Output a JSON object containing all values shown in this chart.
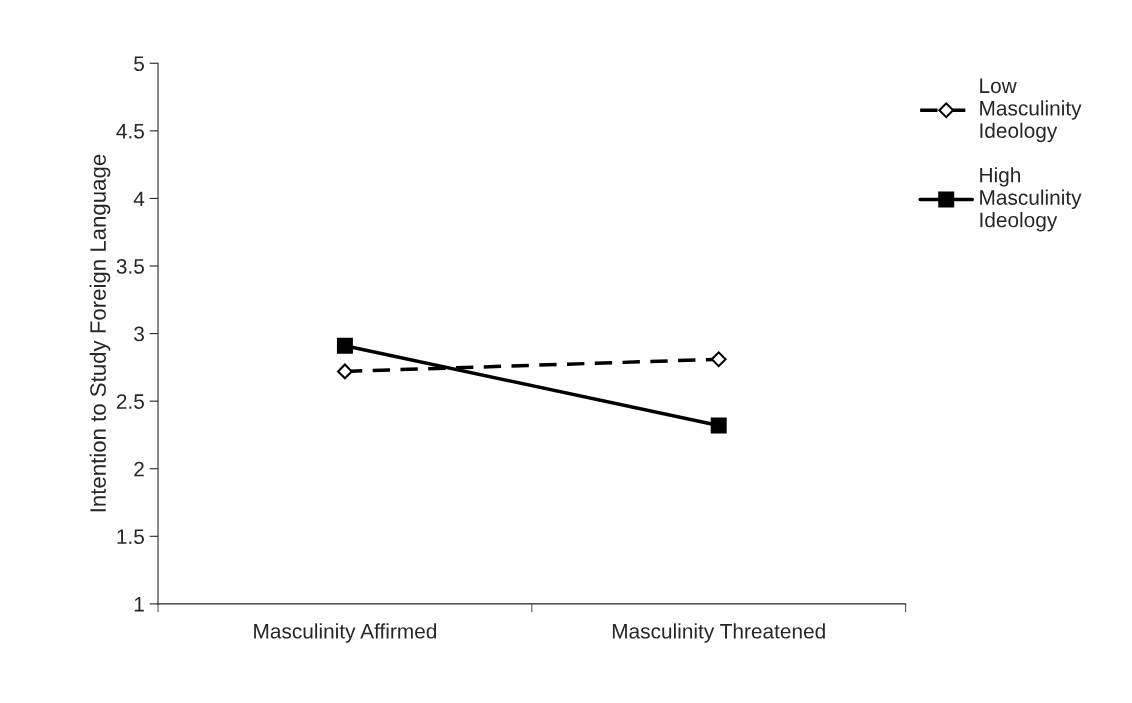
{
  "chart_data": {
    "type": "line",
    "ylabel": "Intention to Study Foreign Language",
    "categories": [
      "Masculinity Affirmed",
      "Masculinity Threatened"
    ],
    "series": [
      {
        "name": "Low Masculinity Ideology",
        "color": "#000000",
        "values": [
          2.72,
          2.81
        ],
        "marker": "diamond",
        "line_style": "dashed"
      },
      {
        "name": "High Masculinity Ideology",
        "color": "#000000",
        "values": [
          2.91,
          2.32
        ],
        "marker": "square",
        "line_style": "solid"
      }
    ],
    "ylim": [
      1,
      5
    ],
    "yticks": [
      1,
      1.5,
      2,
      2.5,
      3,
      3.5,
      4,
      4.5,
      5
    ],
    "grid": false,
    "legend": "right"
  }
}
